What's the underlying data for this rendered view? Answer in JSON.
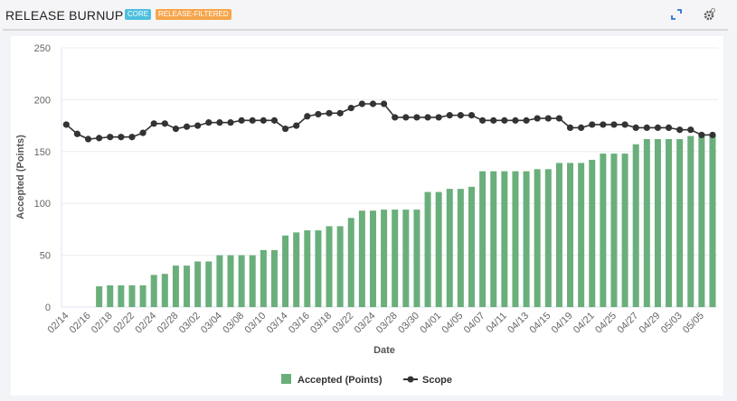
{
  "header": {
    "title": "RELEASE BURNUP",
    "badges": [
      {
        "label": "CORE",
        "color": "#4dbfe0"
      },
      {
        "label": "RELEASE-FILTERED",
        "color": "#f7a54a"
      }
    ],
    "icons": [
      "expand-icon",
      "gear-icon"
    ]
  },
  "chart_data": {
    "type": "bar",
    "title": "",
    "xlabel": "Date",
    "ylabel": "Accepted (Points)",
    "ylim": [
      0,
      250
    ],
    "y_ticks": [
      "0",
      "50",
      "100",
      "150",
      "200",
      "250"
    ],
    "grid": true,
    "legend_position": "bottom",
    "x_tick_labels": [
      "02/14",
      "02/16",
      "02/18",
      "02/22",
      "02/24",
      "02/28",
      "03/02",
      "03/04",
      "03/08",
      "03/10",
      "03/14",
      "03/16",
      "03/18",
      "03/22",
      "03/24",
      "03/28",
      "03/30",
      "04/01",
      "04/05",
      "04/07",
      "04/11",
      "04/13",
      "04/15",
      "04/19",
      "04/21",
      "04/25",
      "04/27",
      "04/29",
      "05/03",
      "05/05"
    ],
    "series": [
      {
        "name": "Accepted (Points)",
        "type": "bar",
        "color": "#6aaf7b",
        "values": [
          0,
          0,
          0,
          20,
          21,
          21,
          21,
          21,
          31,
          32,
          40,
          40,
          44,
          44,
          50,
          50,
          50,
          50,
          55,
          55,
          69,
          72,
          74,
          74,
          78,
          78,
          86,
          93,
          93,
          94,
          94,
          94,
          94,
          111,
          111,
          114,
          114,
          116,
          131,
          131,
          131,
          131,
          131,
          133,
          133,
          139,
          139,
          139,
          142,
          148,
          148,
          148,
          157,
          162,
          162,
          162,
          162,
          165,
          165,
          166
        ]
      },
      {
        "name": "Scope",
        "type": "line",
        "color": "#333333",
        "values": [
          176,
          167,
          162,
          163,
          164,
          164,
          164,
          168,
          177,
          177,
          172,
          174,
          175,
          178,
          178,
          178,
          180,
          180,
          180,
          180,
          172,
          175,
          184,
          186,
          187,
          187,
          192,
          196,
          196,
          196,
          183,
          183,
          183,
          183,
          183,
          185,
          185,
          185,
          180,
          180,
          180,
          180,
          180,
          182,
          182,
          182,
          173,
          173,
          176,
          176,
          176,
          176,
          173,
          173,
          173,
          173,
          171,
          171,
          166,
          166
        ]
      }
    ]
  }
}
